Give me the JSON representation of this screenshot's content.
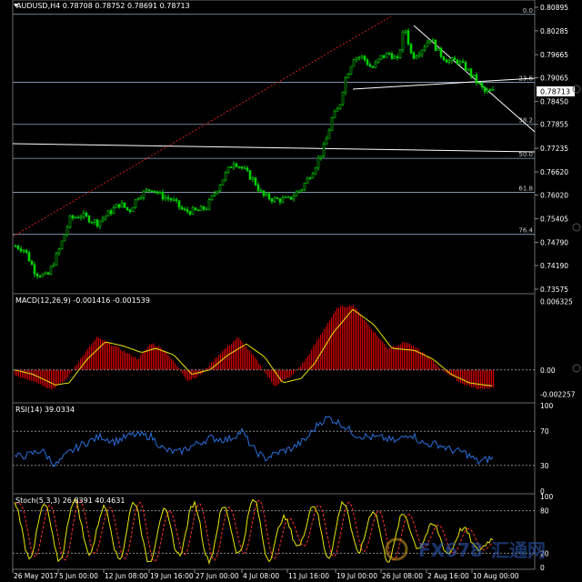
{
  "main_panel": {
    "header": "AUDUSD,H4  0.78708 0.78752 0.78691 0.78713",
    "current_price": "0.78713",
    "price_ticks": [
      "0.80895",
      "0.80285",
      "0.79665",
      "0.79065",
      "0.78450",
      "0.77855",
      "0.77235",
      "0.76620",
      "0.76020",
      "0.75405",
      "0.74790",
      "0.74190",
      "0.73575"
    ],
    "fib_levels": [
      {
        "label": "0.0",
        "price": 0.80712
      },
      {
        "label": "23.6",
        "price": 0.78948
      },
      {
        "label": "38.2",
        "price": 0.77855
      },
      {
        "label": "50.0",
        "price": 0.76973
      },
      {
        "label": "61.8",
        "price": 0.76091
      },
      {
        "label": "76.4",
        "price": 0.74999
      }
    ],
    "colors": {
      "up": "#00d000",
      "down": "#00d000",
      "fib": "#8fa8c8",
      "trend_white": "#ffffff",
      "trend_red": "#d02020"
    }
  },
  "macd_panel": {
    "header": "MACD(12,26,9) -0.001416 -0.001539",
    "ticks": [
      "0.006325",
      "0.00",
      "-0.002257"
    ],
    "range": [
      -0.0028,
      0.0068
    ],
    "colors": {
      "hist": "#cc0000",
      "signal": "#e8e800"
    }
  },
  "rsi_panel": {
    "header": "RSI(14) 39.0334",
    "ticks": [
      "100",
      "70",
      "30",
      "0"
    ],
    "levels": [
      70,
      30
    ],
    "color": "#2a6fdb"
  },
  "stoch_panel": {
    "header": "Stoch(5,3,3) 26.8391 40.4631",
    "ticks": [
      "100",
      "80",
      "20",
      "0"
    ],
    "levels": [
      80,
      20
    ],
    "colors": {
      "main": "#e8e800",
      "signal": "#ff3030"
    }
  },
  "x_axis": {
    "labels": [
      "26 May 2017",
      "5 Jun 00:00",
      "12 Jun 08:00",
      "19 Jun 16:00",
      "27 Jun 00:00",
      "4 Jul 08:00",
      "11 Jul 16:00",
      "19 Jul 00:00",
      "26 Jul 08:00",
      "2 Aug 16:00",
      "10 Aug 00:00"
    ]
  },
  "watermark": {
    "text": "FX678",
    "cn": "汇通网"
  },
  "chart_data": [
    {
      "type": "candlestick",
      "title": "AUDUSD,H4",
      "x_start": "26 May 2017",
      "x_end": "11 Aug 2017",
      "ylim": [
        0.73575,
        0.80895
      ],
      "keypoints_close": [
        [
          0,
          0.747
        ],
        [
          10,
          0.746
        ],
        [
          22,
          0.74
        ],
        [
          35,
          0.739
        ],
        [
          48,
          0.746
        ],
        [
          60,
          0.754
        ],
        [
          72,
          0.755
        ],
        [
          90,
          0.753
        ],
        [
          105,
          0.756
        ],
        [
          115,
          0.758
        ],
        [
          125,
          0.756
        ],
        [
          135,
          0.76
        ],
        [
          150,
          0.762
        ],
        [
          160,
          0.76
        ],
        [
          172,
          0.759
        ],
        [
          185,
          0.756
        ],
        [
          200,
          0.756
        ],
        [
          210,
          0.757
        ],
        [
          222,
          0.762
        ],
        [
          232,
          0.766
        ],
        [
          240,
          0.769
        ],
        [
          250,
          0.767
        ],
        [
          262,
          0.764
        ],
        [
          272,
          0.76
        ],
        [
          285,
          0.759
        ],
        [
          300,
          0.759
        ],
        [
          315,
          0.762
        ],
        [
          328,
          0.767
        ],
        [
          340,
          0.773
        ],
        [
          348,
          0.78
        ],
        [
          356,
          0.783
        ],
        [
          362,
          0.79
        ],
        [
          372,
          0.796
        ],
        [
          382,
          0.796
        ],
        [
          392,
          0.793
        ],
        [
          402,
          0.796
        ],
        [
          412,
          0.797
        ],
        [
          420,
          0.795
        ],
        [
          428,
          0.804
        ],
        [
          436,
          0.796
        ],
        [
          446,
          0.798
        ],
        [
          456,
          0.801
        ],
        [
          466,
          0.797
        ],
        [
          476,
          0.795
        ],
        [
          486,
          0.795
        ],
        [
          496,
          0.793
        ],
        [
          506,
          0.79
        ],
        [
          516,
          0.787
        ],
        [
          526,
          0.7871
        ]
      ]
    },
    {
      "type": "bar",
      "title": "MACD(12,26,9)",
      "ylim": [
        -0.0028,
        0.0068
      ],
      "keypoints_hist": [
        [
          0,
          -0.0005
        ],
        [
          20,
          -0.001
        ],
        [
          40,
          -0.0018
        ],
        [
          55,
          -0.001
        ],
        [
          70,
          0.0008
        ],
        [
          90,
          0.003
        ],
        [
          110,
          0.0022
        ],
        [
          135,
          0.001
        ],
        [
          150,
          0.0025
        ],
        [
          165,
          0.0018
        ],
        [
          190,
          -0.001
        ],
        [
          205,
          -0.0004
        ],
        [
          225,
          0.0015
        ],
        [
          245,
          0.003
        ],
        [
          265,
          0.001
        ],
        [
          285,
          -0.0015
        ],
        [
          305,
          -0.0005
        ],
        [
          320,
          0.001
        ],
        [
          340,
          0.0038
        ],
        [
          355,
          0.0058
        ],
        [
          372,
          0.006
        ],
        [
          390,
          0.004
        ],
        [
          410,
          0.002
        ],
        [
          430,
          0.0026
        ],
        [
          450,
          0.0015
        ],
        [
          470,
          0.0
        ],
        [
          490,
          -0.0012
        ],
        [
          510,
          -0.0018
        ],
        [
          526,
          -0.0016
        ]
      ],
      "keypoints_signal": [
        [
          0,
          0.0
        ],
        [
          20,
          -0.0004
        ],
        [
          45,
          -0.0014
        ],
        [
          60,
          -0.0012
        ],
        [
          80,
          0.001
        ],
        [
          100,
          0.0026
        ],
        [
          120,
          0.0022
        ],
        [
          140,
          0.0016
        ],
        [
          155,
          0.002
        ],
        [
          175,
          0.0014
        ],
        [
          195,
          -0.0004
        ],
        [
          215,
          0.0
        ],
        [
          235,
          0.0014
        ],
        [
          255,
          0.0024
        ],
        [
          275,
          0.0012
        ],
        [
          295,
          -0.0012
        ],
        [
          315,
          -0.0008
        ],
        [
          330,
          0.0006
        ],
        [
          350,
          0.0034
        ],
        [
          372,
          0.0056
        ],
        [
          395,
          0.0042
        ],
        [
          415,
          0.002
        ],
        [
          440,
          0.0018
        ],
        [
          460,
          0.001
        ],
        [
          480,
          -0.0004
        ],
        [
          500,
          -0.0012
        ],
        [
          526,
          -0.0015
        ]
      ]
    },
    {
      "type": "line",
      "title": "RSI(14)",
      "ylim": [
        0,
        100
      ],
      "keypoints": [
        [
          0,
          40
        ],
        [
          15,
          42
        ],
        [
          30,
          48
        ],
        [
          45,
          30
        ],
        [
          60,
          45
        ],
        [
          75,
          55
        ],
        [
          95,
          64
        ],
        [
          110,
          58
        ],
        [
          130,
          66
        ],
        [
          150,
          64
        ],
        [
          165,
          48
        ],
        [
          180,
          45
        ],
        [
          200,
          55
        ],
        [
          215,
          62
        ],
        [
          235,
          60
        ],
        [
          250,
          70
        ],
        [
          262,
          50
        ],
        [
          275,
          38
        ],
        [
          290,
          45
        ],
        [
          305,
          50
        ],
        [
          320,
          60
        ],
        [
          335,
          80
        ],
        [
          345,
          86
        ],
        [
          360,
          78
        ],
        [
          375,
          66
        ],
        [
          390,
          63
        ],
        [
          405,
          62
        ],
        [
          420,
          58
        ],
        [
          435,
          68
        ],
        [
          450,
          55
        ],
        [
          465,
          55
        ],
        [
          480,
          48
        ],
        [
          495,
          45
        ],
        [
          510,
          34
        ],
        [
          526,
          39
        ]
      ]
    },
    {
      "type": "line",
      "title": "Stoch(5,3,3)",
      "ylim": [
        0,
        100
      ],
      "main_value": 26.8391,
      "signal_value": 40.4631,
      "oscillation_peaks": [
        90,
        15,
        88,
        10,
        95,
        20,
        85,
        12,
        92,
        8,
        80,
        18,
        90,
        10,
        85,
        20,
        95,
        12,
        70,
        30,
        88,
        15,
        92,
        22,
        80,
        10,
        75,
        28,
        60,
        20,
        55,
        25,
        40
      ]
    }
  ]
}
